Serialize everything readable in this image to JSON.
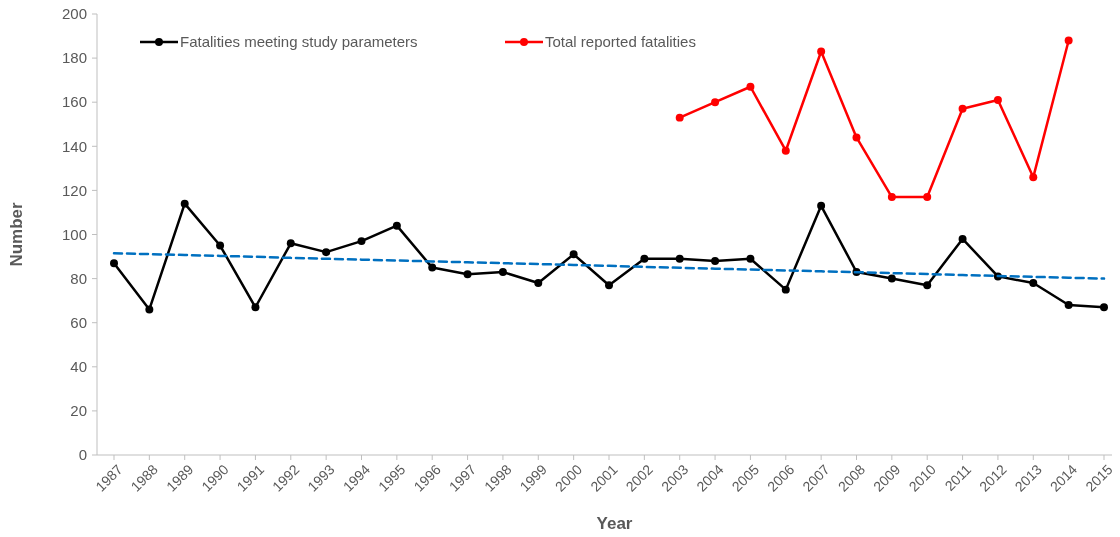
{
  "chart_data": {
    "type": "line",
    "xlabel": "Year",
    "ylabel": "Number",
    "categories": [
      "1987",
      "1988",
      "1989",
      "1990",
      "1991",
      "1992",
      "1993",
      "1994",
      "1995",
      "1996",
      "1997",
      "1998",
      "1999",
      "2000",
      "2001",
      "2002",
      "2003",
      "2004",
      "2005",
      "2006",
      "2007",
      "2008",
      "2009",
      "2010",
      "2011",
      "2012",
      "2013",
      "2014",
      "2015"
    ],
    "series": [
      {
        "name": "Fatalities meeting study parameters",
        "color": "#000000",
        "values": [
          87,
          66,
          114,
          95,
          67,
          96,
          92,
          97,
          104,
          85,
          82,
          83,
          78,
          91,
          77,
          89,
          89,
          88,
          89,
          75,
          113,
          83,
          80,
          77,
          98,
          81,
          78,
          68,
          67
        ]
      },
      {
        "name": "Total reported fatalities",
        "color": "#ff0000",
        "values": [
          null,
          null,
          null,
          null,
          null,
          null,
          null,
          null,
          null,
          null,
          null,
          null,
          null,
          null,
          null,
          null,
          153,
          160,
          167,
          138,
          183,
          144,
          117,
          117,
          157,
          161,
          126,
          188,
          null
        ]
      },
      {
        "type": "line",
        "color": "#0070c0",
        "line_style": "dashed",
        "marker": "none",
        "values": [
          91.5,
          91.1,
          90.7,
          90.3,
          89.9,
          89.4,
          89.0,
          88.6,
          88.2,
          87.8,
          87.4,
          87.0,
          86.6,
          86.2,
          85.8,
          85.3,
          84.9,
          84.5,
          84.1,
          83.7,
          83.3,
          82.9,
          82.5,
          82.1,
          81.6,
          81.2,
          80.8,
          80.4,
          80.0
        ]
      }
    ],
    "ylim": [
      0,
      200
    ],
    "yticks": [
      0,
      20,
      40,
      60,
      80,
      100,
      120,
      140,
      160,
      180,
      200
    ],
    "grid": false,
    "legend": "top left",
    "marker": "circle",
    "line_style": "solid"
  }
}
